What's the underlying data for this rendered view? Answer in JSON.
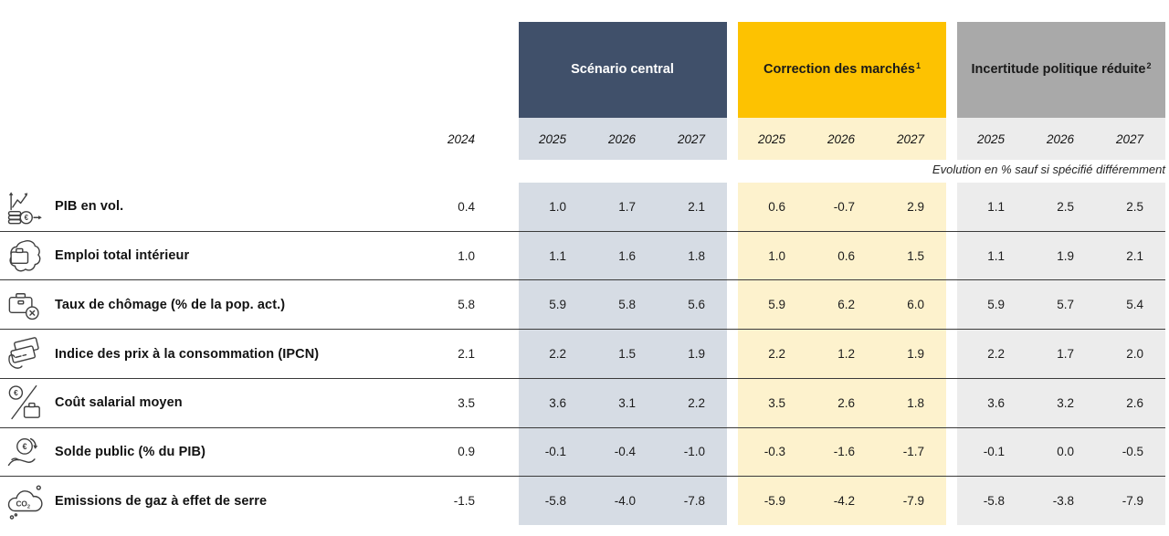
{
  "chart_data": {
    "type": "table",
    "note": "Evolution en % sauf si spécifié différemment",
    "base_column": {
      "year": "2024"
    },
    "scenarios": [
      {
        "name": "Scénario central",
        "footnote": "",
        "years": [
          "2025",
          "2026",
          "2027"
        ],
        "header_bg": "#40506A",
        "header_fg": "#FFFFFF",
        "band_bg": "#D6DCE4"
      },
      {
        "name": "Correction des marchés",
        "footnote": "1",
        "years": [
          "2025",
          "2026",
          "2027"
        ],
        "header_bg": "#FDC201",
        "header_fg": "#1A1A1A",
        "band_bg": "#FDF2CD"
      },
      {
        "name": "Incertitude politique réduite",
        "footnote": "2",
        "years": [
          "2025",
          "2026",
          "2027"
        ],
        "header_bg": "#A9A9A9",
        "header_fg": "#1A1A1A",
        "band_bg": "#ECECEC"
      }
    ],
    "indicators": [
      {
        "icon": "gdp-growth-icon",
        "label": "PIB en vol.",
        "values": {
          "2024": "0.4",
          "central": [
            "1.0",
            "1.7",
            "2.1"
          ],
          "correction": [
            "0.6",
            "-0.7",
            "2.9"
          ],
          "reduced_uncertainty": [
            "1.1",
            "2.5",
            "2.5"
          ]
        }
      },
      {
        "icon": "employment-icon",
        "label": "Emploi total intérieur",
        "values": {
          "2024": "1.0",
          "central": [
            "1.1",
            "1.6",
            "1.8"
          ],
          "correction": [
            "1.0",
            "0.6",
            "1.5"
          ],
          "reduced_uncertainty": [
            "1.1",
            "1.9",
            "2.1"
          ]
        }
      },
      {
        "icon": "unemployment-icon",
        "label": "Taux de chômage (% de la pop. act.)",
        "values": {
          "2024": "5.8",
          "central": [
            "5.9",
            "5.8",
            "5.6"
          ],
          "correction": [
            "5.9",
            "6.2",
            "6.0"
          ],
          "reduced_uncertainty": [
            "5.9",
            "5.7",
            "5.4"
          ]
        }
      },
      {
        "icon": "consumer-price-icon",
        "label": "Indice des prix à la consommation (IPCN)",
        "values": {
          "2024": "2.1",
          "central": [
            "2.2",
            "1.5",
            "1.9"
          ],
          "correction": [
            "2.2",
            "1.2",
            "1.9"
          ],
          "reduced_uncertainty": [
            "2.2",
            "1.7",
            "2.0"
          ]
        }
      },
      {
        "icon": "wage-cost-icon",
        "label": "Coût salarial moyen",
        "values": {
          "2024": "3.5",
          "central": [
            "3.6",
            "3.1",
            "2.2"
          ],
          "correction": [
            "3.5",
            "2.6",
            "1.8"
          ],
          "reduced_uncertainty": [
            "3.6",
            "3.2",
            "2.6"
          ]
        }
      },
      {
        "icon": "public-balance-icon",
        "label": "Solde public (% du PIB)",
        "values": {
          "2024": "0.9",
          "central": [
            "-0.1",
            "-0.4",
            "-1.0"
          ],
          "correction": [
            "-0.3",
            "-1.6",
            "-1.7"
          ],
          "reduced_uncertainty": [
            "-0.1",
            "0.0",
            "-0.5"
          ]
        }
      },
      {
        "icon": "ghg-emissions-icon",
        "label": "Emissions de gaz à effet de serre",
        "values": {
          "2024": "-1.5",
          "central": [
            "-5.8",
            "-4.0",
            "-7.8"
          ],
          "correction": [
            "-5.9",
            "-4.2",
            "-7.9"
          ],
          "reduced_uncertainty": [
            "-5.8",
            "-3.8",
            "-7.9"
          ]
        }
      }
    ]
  }
}
